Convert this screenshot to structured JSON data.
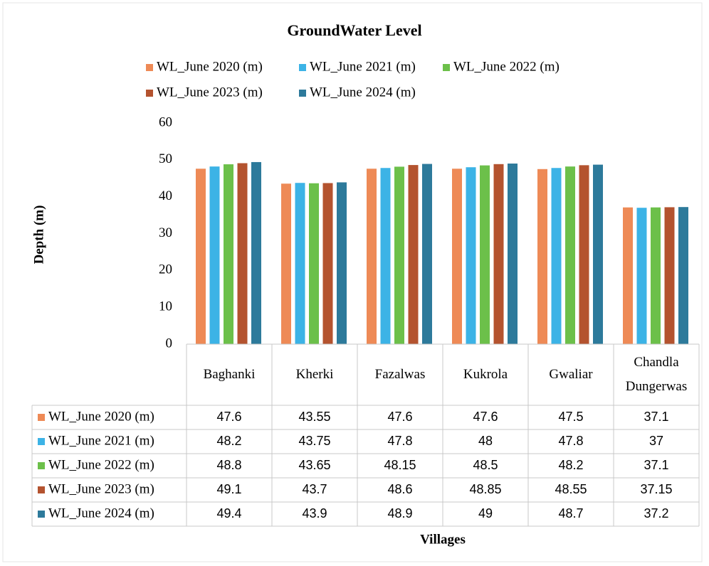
{
  "chart_data": {
    "type": "bar",
    "title": "GroundWater Level",
    "y_label": "Depth (m)",
    "x_label": "Villages",
    "categories": [
      "Baghanki",
      "Kherki",
      "Fazalwas",
      "Kukrola",
      "Gwaliar",
      "Chandla Dungerwas"
    ],
    "series": [
      {
        "name": "WL_June 2020 (m)",
        "color": "#ee8a56",
        "values": [
          47.6,
          43.55,
          47.6,
          47.6,
          47.5,
          37.1
        ]
      },
      {
        "name": "WL_June 2021 (m)",
        "color": "#3cb3e6",
        "values": [
          48.2,
          43.75,
          47.8,
          48,
          47.8,
          37
        ]
      },
      {
        "name": "WL_June 2022 (m)",
        "color": "#6cc04a",
        "values": [
          48.8,
          43.65,
          48.15,
          48.5,
          48.2,
          37.1
        ]
      },
      {
        "name": "WL_June 2023 (m)",
        "color": "#b4532f",
        "values": [
          49.1,
          43.7,
          48.6,
          48.85,
          48.55,
          37.15
        ]
      },
      {
        "name": "WL_June 2024 (m)",
        "color": "#2d7a9b",
        "values": [
          49.4,
          43.9,
          48.9,
          49,
          48.7,
          37.2
        ]
      }
    ],
    "ylim": [
      0,
      60
    ],
    "yticks": [
      0,
      10,
      20,
      30,
      40,
      50,
      60
    ],
    "grid": false,
    "legend": "top",
    "data_table": true
  }
}
